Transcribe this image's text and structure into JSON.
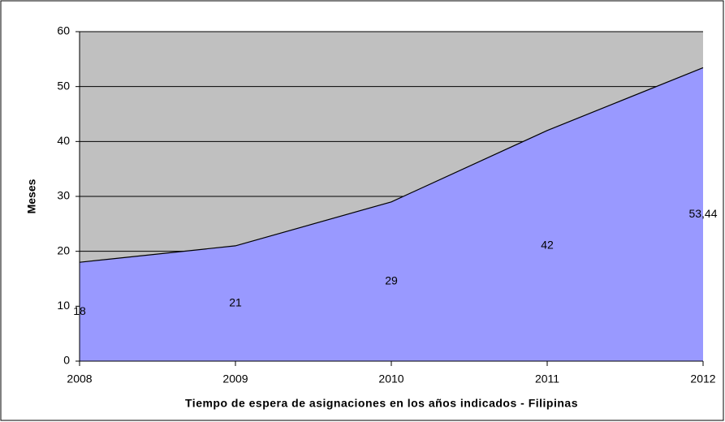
{
  "chart_data": {
    "type": "area",
    "x_label": "Tiempo de espera de asignaciones en los años indicados - Filipinas",
    "y_label": "Meses",
    "categories": [
      "2008",
      "2009",
      "2010",
      "2011",
      "2012"
    ],
    "values": [
      18,
      21,
      29,
      42,
      53.44
    ],
    "value_labels": [
      "18",
      "21",
      "29",
      "42",
      "53,44"
    ],
    "color": "#9999ff",
    "plot_background": "#c0c0c0",
    "ylim": [
      0,
      60
    ],
    "yticks": [
      0,
      10,
      20,
      30,
      40,
      50,
      60
    ],
    "grid": true
  }
}
